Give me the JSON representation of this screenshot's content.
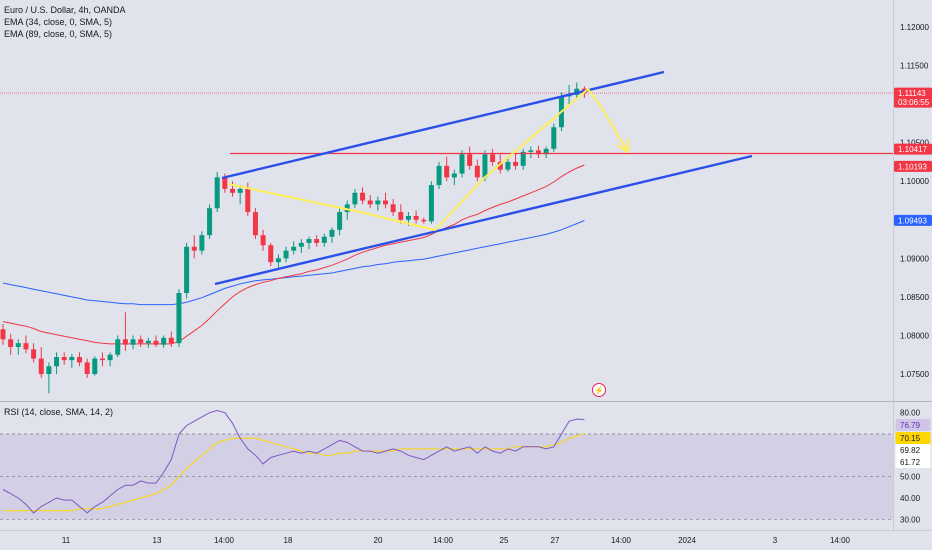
{
  "legend": {
    "symbol": "Euro / U.S. Dollar, 4h, OANDA",
    "ema34": "EMA (34, close, 0, SMA, 5)",
    "ema89": "EMA (89, close, 0, SMA, 5)",
    "rsi": "RSI (14, close, SMA, 14, 2)"
  },
  "colors": {
    "background": "#e0e3eb",
    "up": "#089981",
    "down": "#f23645",
    "ema34": "#f23645",
    "ema89": "#2962ff",
    "channel": "#2b50e8",
    "resistance": "#f23645",
    "arrows": "#ffee58",
    "rsi_line": "#7e57c2",
    "rsi_ma": "#ffd600"
  },
  "chart_data": [
    {
      "type": "candlestick",
      "title": "Euro / U.S. Dollar, 4h, OANDA",
      "ylim": [
        1.0715,
        1.1235
      ],
      "price_ticks": [
        "1.12000",
        "1.11500",
        "1.10500",
        "1.10000",
        "1.09000",
        "1.08500",
        "1.08000",
        "1.07500"
      ],
      "date_ticks": [
        "11",
        "13",
        "14:00",
        "18",
        "20",
        "14:00",
        "25",
        "27",
        "14:00",
        "2024",
        "3",
        "14:00"
      ],
      "price_labels": [
        {
          "value": 1.11143,
          "text": "1.11143",
          "sub": "03:06:55",
          "color": "#f23645"
        },
        {
          "value": 1.10417,
          "text": "1.10417",
          "color": "#f23645"
        },
        {
          "value": 1.10193,
          "text": "1.10193",
          "color": "#f23645"
        },
        {
          "value": 1.09493,
          "text": "1.09493",
          "color": "#2962ff"
        }
      ],
      "candles": [
        [
          1.0808,
          1.0815,
          1.0788,
          1.0795
        ],
        [
          1.0795,
          1.0802,
          1.0775,
          1.0785
        ],
        [
          1.0785,
          1.0795,
          1.0775,
          1.079
        ],
        [
          1.079,
          1.08,
          1.0777,
          1.0782
        ],
        [
          1.0782,
          1.079,
          1.0765,
          1.077
        ],
        [
          1.077,
          1.0785,
          1.0745,
          1.075
        ],
        [
          1.075,
          1.0765,
          1.0725,
          1.076
        ],
        [
          1.076,
          1.0778,
          1.075,
          1.0772
        ],
        [
          1.0772,
          1.0778,
          1.0762,
          1.0768
        ],
        [
          1.0768,
          1.0776,
          1.0758,
          1.0772
        ],
        [
          1.0772,
          1.0778,
          1.076,
          1.0765
        ],
        [
          1.0765,
          1.077,
          1.0745,
          1.075
        ],
        [
          1.075,
          1.0773,
          1.0748,
          1.077
        ],
        [
          1.077,
          1.0778,
          1.076,
          1.0768
        ],
        [
          1.0768,
          1.0778,
          1.076,
          1.0775
        ],
        [
          1.0775,
          1.08,
          1.0772,
          1.0795
        ],
        [
          1.0795,
          1.083,
          1.078,
          1.0788
        ],
        [
          1.0788,
          1.08,
          1.0782,
          1.0795
        ],
        [
          1.0795,
          1.08,
          1.0785,
          1.079
        ],
        [
          1.079,
          1.0797,
          1.0784,
          1.0793
        ],
        [
          1.0793,
          1.08,
          1.0785,
          1.0788
        ],
        [
          1.0788,
          1.08,
          1.0784,
          1.0797
        ],
        [
          1.0797,
          1.0805,
          1.0785,
          1.079
        ],
        [
          1.079,
          1.086,
          1.0785,
          1.0855
        ],
        [
          1.0855,
          1.092,
          1.0848,
          1.0915
        ],
        [
          1.0915,
          1.093,
          1.09,
          1.091
        ],
        [
          1.091,
          1.0935,
          1.0905,
          1.093
        ],
        [
          1.093,
          1.097,
          1.0925,
          1.0965
        ],
        [
          1.0965,
          1.1012,
          1.096,
          1.1005
        ],
        [
          1.1005,
          1.101,
          1.0985,
          1.099
        ],
        [
          1.099,
          1.1,
          1.098,
          1.0985
        ],
        [
          1.0985,
          1.0995,
          1.097,
          1.099
        ],
        [
          1.099,
          1.0998,
          1.0955,
          1.096
        ],
        [
          1.096,
          1.0965,
          1.0925,
          1.093
        ],
        [
          1.093,
          1.0937,
          1.091,
          1.0917
        ],
        [
          1.0917,
          1.092,
          1.089,
          1.0895
        ],
        [
          1.0895,
          1.0905,
          1.0888,
          1.09
        ],
        [
          1.09,
          1.0915,
          1.0895,
          1.091
        ],
        [
          1.091,
          1.0922,
          1.0905,
          1.0915
        ],
        [
          1.0915,
          1.0925,
          1.0907,
          1.092
        ],
        [
          1.092,
          1.0928,
          1.0912,
          1.0925
        ],
        [
          1.0925,
          1.093,
          1.0915,
          1.092
        ],
        [
          1.092,
          1.0932,
          1.0915,
          1.0928
        ],
        [
          1.0928,
          1.094,
          1.092,
          1.0937
        ],
        [
          1.0937,
          1.0965,
          1.093,
          1.096
        ],
        [
          1.096,
          1.0975,
          1.095,
          1.097
        ],
        [
          1.097,
          1.099,
          1.0965,
          1.0985
        ],
        [
          1.0985,
          1.0992,
          1.097,
          1.0975
        ],
        [
          1.0975,
          1.0982,
          1.0965,
          1.097
        ],
        [
          1.097,
          1.098,
          1.0962,
          1.0975
        ],
        [
          1.0975,
          1.0985,
          1.0965,
          1.097
        ],
        [
          1.097,
          1.0977,
          1.0955,
          1.096
        ],
        [
          1.096,
          1.097,
          1.0945,
          1.095
        ],
        [
          1.095,
          1.096,
          1.0942,
          1.0955
        ],
        [
          1.0955,
          1.0962,
          1.0945,
          1.095
        ],
        [
          1.095,
          1.0953,
          1.0945,
          1.0948
        ],
        [
          1.0948,
          1.1,
          1.0945,
          1.0995
        ],
        [
          1.0995,
          1.1025,
          1.099,
          1.102
        ],
        [
          1.102,
          1.1032,
          1.1,
          1.1005
        ],
        [
          1.1005,
          1.1015,
          1.0995,
          1.101
        ],
        [
          1.101,
          1.104,
          1.1005,
          1.1035
        ],
        [
          1.1035,
          1.1045,
          1.1015,
          1.102
        ],
        [
          1.102,
          1.1028,
          1.1,
          1.1005
        ],
        [
          1.1005,
          1.104,
          1.1,
          1.1035
        ],
        [
          1.1035,
          1.1042,
          1.102,
          1.1025
        ],
        [
          1.1025,
          1.1035,
          1.101,
          1.1015
        ],
        [
          1.1015,
          1.103,
          1.1012,
          1.1025
        ],
        [
          1.1025,
          1.1035,
          1.1015,
          1.102
        ],
        [
          1.102,
          1.1042,
          1.1015,
          1.1038
        ],
        [
          1.1038,
          1.1045,
          1.103,
          1.104
        ],
        [
          1.104,
          1.1046,
          1.103,
          1.1035
        ],
        [
          1.1035,
          1.1045,
          1.103,
          1.1042
        ],
        [
          1.1042,
          1.1075,
          1.1038,
          1.107
        ],
        [
          1.107,
          1.1115,
          1.1065,
          1.111
        ],
        [
          1.111,
          1.1125,
          1.11,
          1.1112
        ],
        [
          1.1112,
          1.1128,
          1.1108,
          1.112
        ],
        [
          1.112,
          1.1123,
          1.1108,
          1.1114
        ]
      ],
      "ema34": [
        1.0818,
        1.0816,
        1.0814,
        1.0812,
        1.0809,
        1.0805,
        1.0803,
        1.0801,
        1.0799,
        1.0797,
        1.0795,
        1.0793,
        1.0791,
        1.079,
        1.0789,
        1.0789,
        1.0789,
        1.0789,
        1.0789,
        1.0789,
        1.0789,
        1.0789,
        1.0789,
        1.0792,
        1.0799,
        1.0806,
        1.0813,
        1.0822,
        1.0832,
        1.0841,
        1.085,
        1.0857,
        1.0862,
        1.0866,
        1.0869,
        1.0871,
        1.0874,
        1.0876,
        1.0878,
        1.088,
        1.0883,
        1.0885,
        1.0888,
        1.0891,
        1.0895,
        1.0899,
        1.0904,
        1.0908,
        1.0911,
        1.0914,
        1.0917,
        1.0919,
        1.0921,
        1.0923,
        1.0925,
        1.0927,
        1.0931,
        1.0936,
        1.094,
        1.0944,
        1.095,
        1.0954,
        1.0957,
        1.0962,
        1.0966,
        1.097,
        1.0973,
        1.0977,
        1.0981,
        1.0985,
        1.0989,
        1.0993,
        1.0999,
        1.1006,
        1.1012,
        1.1017,
        1.1021
      ],
      "ema89": [
        1.0868,
        1.0866,
        1.0864,
        1.0862,
        1.086,
        1.0858,
        1.0856,
        1.0854,
        1.0852,
        1.085,
        1.0848,
        1.0846,
        1.0845,
        1.0844,
        1.0843,
        1.0842,
        1.0841,
        1.0841,
        1.084,
        1.084,
        1.084,
        1.084,
        1.084,
        1.0841,
        1.0843,
        1.0846,
        1.0849,
        1.0853,
        1.0857,
        1.0861,
        1.0864,
        1.0867,
        1.0869,
        1.0871,
        1.0872,
        1.0873,
        1.0874,
        1.0875,
        1.0876,
        1.0877,
        1.0878,
        1.0879,
        1.088,
        1.0881,
        1.0883,
        1.0885,
        1.0887,
        1.0889,
        1.089,
        1.0892,
        1.0893,
        1.0895,
        1.0896,
        1.0897,
        1.0898,
        1.0899,
        1.0901,
        1.0903,
        1.0905,
        1.0907,
        1.0909,
        1.0911,
        1.0913,
        1.0915,
        1.0917,
        1.0919,
        1.0921,
        1.0923,
        1.0925,
        1.0927,
        1.0929,
        1.0931,
        1.0934,
        1.0937,
        1.0941,
        1.0945,
        1.0949
      ]
    },
    {
      "type": "line",
      "title": "RSI (14, close, SMA, 14, 2)",
      "ylim": [
        25,
        85
      ],
      "levels": [
        70,
        50,
        30
      ],
      "y_ticks": [
        "80.00",
        "50.00",
        "40.00",
        "30.00"
      ],
      "value_labels": [
        {
          "value": 76.79,
          "text": "76.79",
          "fill": "#d1c4e9",
          "color": "#5e35b1"
        },
        {
          "value": 70.15,
          "text": "70.15",
          "fill": "#ffd600",
          "color": "#131722"
        },
        {
          "value": 69.82,
          "text": "69.82",
          "fill": "#ffffff",
          "color": "#131722"
        },
        {
          "value": 61.72,
          "text": "61.72",
          "fill": "#ffffff",
          "color": "#131722"
        }
      ],
      "series": [
        {
          "name": "RSI",
          "values": [
            44,
            42,
            40,
            37,
            33,
            36,
            38,
            40,
            39,
            39,
            36,
            33,
            36,
            38,
            41,
            44,
            46,
            46,
            48,
            47,
            47,
            52,
            58,
            70,
            74,
            76,
            78,
            80,
            81,
            80,
            75,
            68,
            63,
            60,
            56,
            59,
            60,
            61,
            62,
            61,
            62,
            61,
            63,
            65,
            67,
            66,
            64,
            62,
            62,
            61,
            62,
            63,
            62,
            60,
            59,
            58,
            60,
            62,
            64,
            62,
            63,
            64,
            61,
            64,
            62,
            61,
            63,
            62,
            64,
            64,
            64,
            63,
            64,
            70,
            76,
            77,
            76.79
          ]
        },
        {
          "name": "MA",
          "values": [
            34,
            34,
            34,
            34,
            34,
            34,
            34,
            34,
            34,
            34,
            35,
            35,
            35,
            35,
            36,
            37,
            38,
            39,
            40,
            41,
            42,
            44,
            46,
            50,
            54,
            57,
            60,
            63,
            66,
            67,
            68,
            68,
            68,
            68,
            67,
            66,
            65,
            64,
            63,
            62,
            61,
            61,
            60,
            60,
            61,
            61,
            62,
            62,
            62,
            62,
            62,
            62,
            63,
            63,
            63,
            63,
            63,
            63,
            63,
            63,
            63,
            63,
            63,
            63,
            63,
            63,
            63,
            64,
            64,
            64,
            64,
            64,
            65,
            66,
            68,
            69,
            70.15
          ]
        }
      ]
    }
  ]
}
